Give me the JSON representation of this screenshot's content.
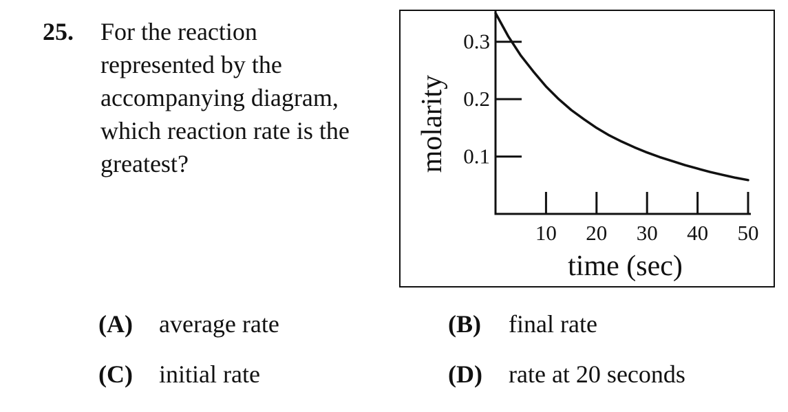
{
  "question": {
    "number": "25.",
    "lines": [
      "For the reaction",
      "represented by the",
      "accompanying diagram,",
      "which reaction rate is the",
      "greatest?"
    ]
  },
  "chart_data": {
    "type": "line",
    "title": "",
    "xlabel": "time (sec)",
    "ylabel": "molarity",
    "xlim": [
      0,
      50
    ],
    "ylim": [
      0,
      0.35
    ],
    "x_ticks": [
      10,
      20,
      30,
      40,
      50
    ],
    "x_tick_labels": [
      "10",
      "20",
      "30",
      "40",
      "50"
    ],
    "y_ticks": [
      0.1,
      0.2,
      0.3
    ],
    "y_tick_labels": [
      "0.1",
      "0.2",
      "0.3"
    ],
    "grid": false,
    "series": [
      {
        "x": [
          0,
          2.5,
          5,
          7.5,
          10,
          12.5,
          15,
          17.5,
          20,
          22.5,
          25,
          27.5,
          30,
          32.5,
          35,
          37.5,
          40,
          42.5,
          45,
          47.5,
          50
        ],
        "values": [
          0.35,
          0.31,
          0.276,
          0.248,
          0.222,
          0.2,
          0.181,
          0.165,
          0.15,
          0.137,
          0.126,
          0.116,
          0.107,
          0.099,
          0.092,
          0.085,
          0.079,
          0.073,
          0.068,
          0.063,
          0.059
        ],
        "color": "#111111"
      }
    ]
  },
  "choices": [
    {
      "letter": "(A)",
      "text": "average rate"
    },
    {
      "letter": "(B)",
      "text": "final rate"
    },
    {
      "letter": "(C)",
      "text": "initial rate"
    },
    {
      "letter": "(D)",
      "text": "rate at 20 seconds"
    }
  ]
}
